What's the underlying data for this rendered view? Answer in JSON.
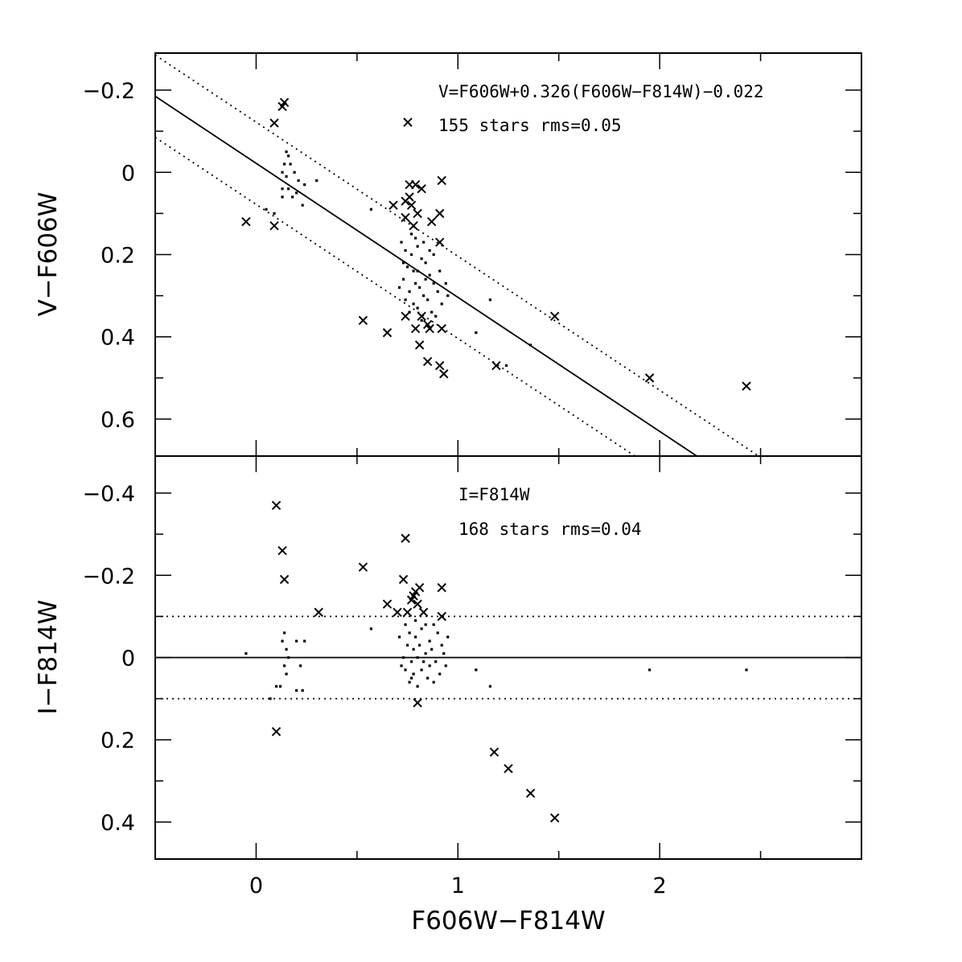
{
  "chart_data": [
    {
      "type": "scatter",
      "panel": "top",
      "xlabel": "",
      "ylabel": "V−F606W",
      "xlim": [
        -0.5,
        3.0
      ],
      "ylim": [
        0.69,
        -0.29
      ],
      "y_inverted": true,
      "xticks": [
        0,
        1,
        2
      ],
      "xtick_labels": [
        "",
        "",
        ""
      ],
      "yticks": [
        -0.2,
        0,
        0.2,
        0.4,
        0.6
      ],
      "ytick_labels": [
        "−0.2",
        "0",
        "0.2",
        "0.4",
        "0.6"
      ],
      "annotations": [
        "V=F606W+0.326(F606W−F814W)−0.022",
        "155 stars  rms=0.05"
      ],
      "fit": {
        "slope": 0.326,
        "intercept": -0.022,
        "band": 0.1
      },
      "series": [
        {
          "marker": "x",
          "points": [
            [
              0.14,
              -0.17
            ],
            [
              0.13,
              -0.16
            ],
            [
              0.09,
              -0.12
            ],
            [
              -0.05,
              0.12
            ],
            [
              0.09,
              0.13
            ],
            [
              0.76,
              0.03
            ],
            [
              0.79,
              0.03
            ],
            [
              0.82,
              0.04
            ],
            [
              0.92,
              0.02
            ],
            [
              0.76,
              0.06
            ],
            [
              0.74,
              0.07
            ],
            [
              0.77,
              0.08
            ],
            [
              0.68,
              0.08
            ],
            [
              0.91,
              0.1
            ],
            [
              0.8,
              0.1
            ],
            [
              0.74,
              0.11
            ],
            [
              0.87,
              0.12
            ],
            [
              0.78,
              0.13
            ],
            [
              0.91,
              0.17
            ],
            [
              0.74,
              0.35
            ],
            [
              0.82,
              0.35
            ],
            [
              0.85,
              0.37
            ],
            [
              0.79,
              0.38
            ],
            [
              0.92,
              0.38
            ],
            [
              0.86,
              0.38
            ],
            [
              0.53,
              0.36
            ],
            [
              0.65,
              0.39
            ],
            [
              0.81,
              0.42
            ],
            [
              0.85,
              0.46
            ],
            [
              0.91,
              0.47
            ],
            [
              0.93,
              0.49
            ],
            [
              1.19,
              0.47
            ],
            [
              1.48,
              0.35
            ],
            [
              1.95,
              0.5
            ],
            [
              2.43,
              0.52
            ]
          ]
        },
        {
          "marker": "dot",
          "points": [
            [
              0.15,
              -0.05
            ],
            [
              0.16,
              -0.04
            ],
            [
              0.14,
              -0.02
            ],
            [
              0.17,
              -0.02
            ],
            [
              0.13,
              0.0
            ],
            [
              0.19,
              0.0
            ],
            [
              0.15,
              0.01
            ],
            [
              0.21,
              0.02
            ],
            [
              0.24,
              0.03
            ],
            [
              0.13,
              0.04
            ],
            [
              0.16,
              0.04
            ],
            [
              0.2,
              0.05
            ],
            [
              0.13,
              0.06
            ],
            [
              0.18,
              0.06
            ],
            [
              0.23,
              0.08
            ],
            [
              0.05,
              0.09
            ],
            [
              0.09,
              0.1
            ],
            [
              0.3,
              0.02
            ],
            [
              0.57,
              0.09
            ],
            [
              1.16,
              0.31
            ],
            [
              1.09,
              0.39
            ],
            [
              1.36,
              0.42
            ],
            [
              1.24,
              0.47
            ],
            [
              0.72,
              0.17
            ],
            [
              0.74,
              0.19
            ],
            [
              0.77,
              0.2
            ],
            [
              0.8,
              0.18
            ],
            [
              0.82,
              0.21
            ],
            [
              0.75,
              0.23
            ],
            [
              0.78,
              0.24
            ],
            [
              0.84,
              0.22
            ],
            [
              0.86,
              0.25
            ],
            [
              0.73,
              0.26
            ],
            [
              0.79,
              0.27
            ],
            [
              0.81,
              0.28
            ],
            [
              0.88,
              0.27
            ],
            [
              0.76,
              0.29
            ],
            [
              0.83,
              0.3
            ],
            [
              0.9,
              0.29
            ],
            [
              0.74,
              0.31
            ],
            [
              0.78,
              0.32
            ],
            [
              0.85,
              0.31
            ],
            [
              0.92,
              0.32
            ],
            [
              0.8,
              0.33
            ],
            [
              0.87,
              0.34
            ],
            [
              0.76,
              0.34
            ],
            [
              0.82,
              0.36
            ],
            [
              0.89,
              0.35
            ],
            [
              0.73,
              0.22
            ],
            [
              0.91,
              0.24
            ],
            [
              0.79,
              0.16
            ],
            [
              0.83,
              0.17
            ],
            [
              0.86,
              0.19
            ],
            [
              0.77,
              0.15
            ],
            [
              0.94,
              0.27
            ],
            [
              0.95,
              0.3
            ],
            [
              0.71,
              0.28
            ],
            [
              0.84,
              0.26
            ],
            [
              0.8,
              0.24
            ],
            [
              0.88,
              0.2
            ]
          ]
        }
      ]
    },
    {
      "type": "scatter",
      "panel": "bottom",
      "xlabel": "F606W−F814W",
      "ylabel": "I−F814W",
      "xlim": [
        -0.5,
        3.0
      ],
      "ylim": [
        0.49,
        -0.49
      ],
      "y_inverted": true,
      "xticks": [
        0,
        1,
        2
      ],
      "xtick_labels": [
        "0",
        "1",
        "2"
      ],
      "yticks": [
        -0.4,
        -0.2,
        0,
        0.2,
        0.4
      ],
      "ytick_labels": [
        "−0.4",
        "−0.2",
        "0",
        "0.2",
        "0.4"
      ],
      "annotations": [
        "I=F814W",
        "168 stars  rms=0.04"
      ],
      "fit": {
        "slope": 0,
        "intercept": 0,
        "band": 0.1
      },
      "series": [
        {
          "marker": "x",
          "points": [
            [
              0.1,
              -0.37
            ],
            [
              0.13,
              -0.26
            ],
            [
              0.14,
              -0.19
            ],
            [
              0.1,
              0.18
            ],
            [
              0.31,
              -0.11
            ],
            [
              0.53,
              -0.22
            ],
            [
              0.74,
              -0.29
            ],
            [
              0.73,
              -0.19
            ],
            [
              0.65,
              -0.13
            ],
            [
              0.7,
              -0.11
            ],
            [
              0.75,
              -0.11
            ],
            [
              0.77,
              -0.14
            ],
            [
              0.8,
              -0.13
            ],
            [
              0.79,
              -0.16
            ],
            [
              0.81,
              -0.17
            ],
            [
              0.78,
              -0.15
            ],
            [
              0.83,
              -0.11
            ],
            [
              0.92,
              -0.17
            ],
            [
              0.92,
              -0.1
            ],
            [
              0.8,
              0.11
            ],
            [
              1.18,
              0.23
            ],
            [
              1.25,
              0.27
            ],
            [
              1.36,
              0.33
            ],
            [
              1.48,
              0.39
            ]
          ]
        },
        {
          "marker": "dot",
          "points": [
            [
              -0.05,
              -0.01
            ],
            [
              0.14,
              -0.06
            ],
            [
              0.13,
              -0.04
            ],
            [
              0.15,
              -0.02
            ],
            [
              0.16,
              0.0
            ],
            [
              0.14,
              0.02
            ],
            [
              0.2,
              -0.04
            ],
            [
              0.24,
              -0.04
            ],
            [
              0.22,
              0.02
            ],
            [
              0.15,
              0.04
            ],
            [
              0.1,
              0.07
            ],
            [
              0.12,
              0.07
            ],
            [
              0.2,
              0.08
            ],
            [
              0.23,
              0.08
            ],
            [
              0.07,
              0.1
            ],
            [
              0.57,
              -0.07
            ],
            [
              1.09,
              0.03
            ],
            [
              1.16,
              0.07
            ],
            [
              1.95,
              0.03
            ],
            [
              2.43,
              0.03
            ],
            [
              0.74,
              -0.08
            ],
            [
              0.76,
              -0.06
            ],
            [
              0.79,
              -0.05
            ],
            [
              0.82,
              -0.07
            ],
            [
              0.86,
              -0.04
            ],
            [
              0.88,
              -0.08
            ],
            [
              0.9,
              -0.06
            ],
            [
              0.75,
              -0.03
            ],
            [
              0.78,
              -0.02
            ],
            [
              0.81,
              -0.03
            ],
            [
              0.84,
              -0.01
            ],
            [
              0.87,
              -0.02
            ],
            [
              0.92,
              -0.03
            ],
            [
              0.95,
              -0.05
            ],
            [
              0.73,
              0.0
            ],
            [
              0.77,
              0.01
            ],
            [
              0.8,
              0.0
            ],
            [
              0.83,
              0.01
            ],
            [
              0.86,
              0.02
            ],
            [
              0.89,
              0.01
            ],
            [
              0.74,
              0.03
            ],
            [
              0.78,
              0.04
            ],
            [
              0.82,
              0.03
            ],
            [
              0.85,
              0.05
            ],
            [
              0.91,
              0.04
            ],
            [
              0.76,
              0.06
            ],
            [
              0.8,
              0.07
            ],
            [
              0.88,
              0.06
            ],
            [
              0.72,
              0.02
            ],
            [
              0.94,
              0.02
            ],
            [
              0.79,
              -0.09
            ],
            [
              0.84,
              -0.08
            ],
            [
              0.71,
              -0.05
            ],
            [
              0.93,
              -0.01
            ],
            [
              0.77,
              0.05
            ]
          ]
        }
      ]
    }
  ]
}
